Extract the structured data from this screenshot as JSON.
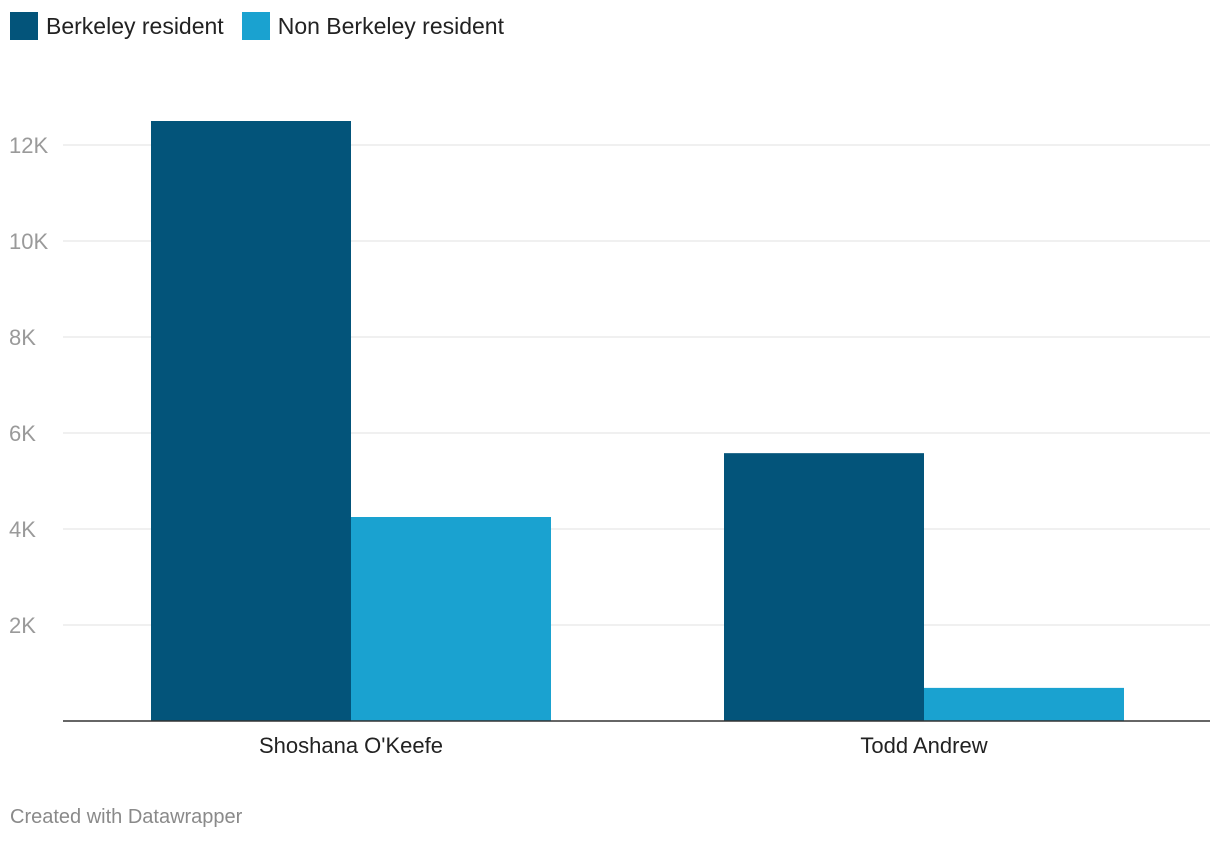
{
  "chart_data": {
    "type": "bar",
    "categories": [
      "Shoshana O'Keefe",
      "Todd Andrew"
    ],
    "series": [
      {
        "name": "Berkeley resident",
        "color": "#03547a",
        "values": [
          12500,
          5580
        ]
      },
      {
        "name": "Non Berkeley resident",
        "color": "#1aa2d0",
        "values": [
          4250,
          690
        ]
      }
    ],
    "yticks": [
      "2K",
      "4K",
      "6K",
      "8K",
      "10K",
      "12K"
    ],
    "ytick_values": [
      2000,
      4000,
      6000,
      8000,
      10000,
      12000
    ],
    "ylim": [
      0,
      13000
    ],
    "grid": true,
    "legend_position": "top-left"
  },
  "legend": [
    {
      "label": "Berkeley resident",
      "color": "#03547a"
    },
    {
      "label": "Non Berkeley resident",
      "color": "#1aa2d0"
    }
  ],
  "footer": {
    "credit": "Created with Datawrapper"
  }
}
